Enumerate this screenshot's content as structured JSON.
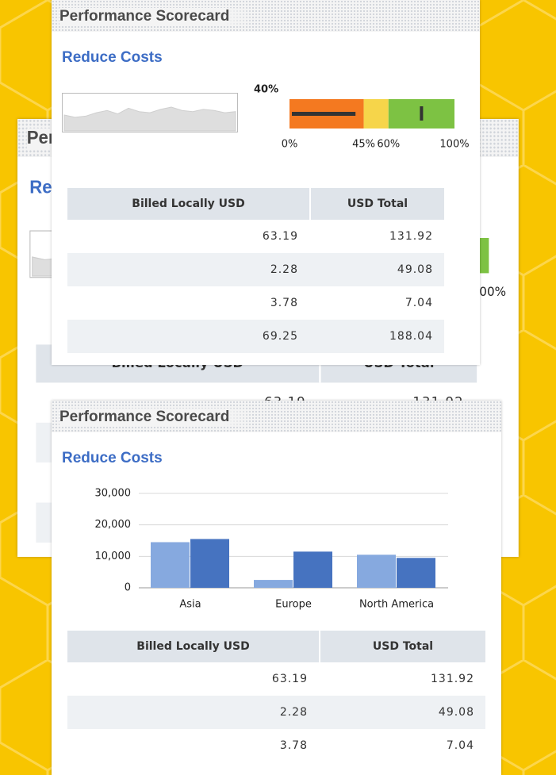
{
  "top_card": {
    "title": "Performance Scorecard",
    "subtitle": "Reduce Costs",
    "sparkline": [
      14,
      12,
      13,
      16,
      18,
      15,
      20,
      17,
      16,
      19,
      21,
      18,
      17,
      19,
      18,
      16,
      17
    ],
    "gauge": {
      "value": 40,
      "value_label": "40%",
      "target": 80,
      "colors": [
        "#f47920",
        "#f6d54a",
        "#7dc243"
      ],
      "ticks": [
        {
          "value": 0,
          "label": "0%"
        },
        {
          "value": 45,
          "label": "45%"
        },
        {
          "value": 60,
          "label": "60%"
        },
        {
          "value": 100,
          "label": "100%"
        }
      ]
    },
    "table": {
      "header": [
        "Billed Locally USD",
        "USD Total"
      ],
      "rows": [
        [
          63.19,
          131.92
        ],
        [
          2.28,
          49.08
        ],
        [
          3.78,
          7.04
        ],
        [
          69.25,
          188.04
        ]
      ]
    }
  },
  "bottom_card": {
    "title": "Performance Scorecard",
    "subtitle": "Reduce Costs",
    "table": {
      "header": [
        "Billed Locally USD",
        "USD Total"
      ],
      "rows": [
        [
          63.19,
          131.92
        ],
        [
          2.28,
          49.08
        ],
        [
          3.78,
          7.04
        ]
      ]
    }
  },
  "chart_data": {
    "type": "bar",
    "categories": [
      "Asia",
      "Europe",
      "North America"
    ],
    "series": [
      {
        "color": "#86a9df",
        "values": [
          14500,
          2500,
          10500
        ]
      },
      {
        "color": "#4673c0",
        "values": [
          15500,
          11500,
          9500
        ]
      }
    ],
    "ylim": [
      0,
      30000
    ],
    "yticks": [
      0,
      {
        "value": 10000,
        "label": "10,000"
      },
      {
        "value": 20000,
        "label": "20,000"
      },
      {
        "value": 30000,
        "label": "30,000"
      }
    ],
    "grid": true
  }
}
